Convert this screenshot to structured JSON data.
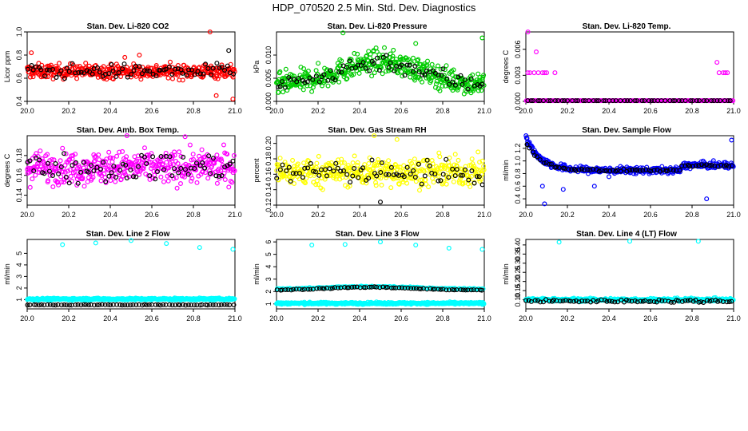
{
  "figure": {
    "title": "HDP_070520  2.5 Min. Std. Dev. Diagnostics"
  },
  "chart_data": [
    {
      "type": "scatter",
      "title": "Stan. Dev. Li-820 CO2",
      "ylabel": "Licor ppm",
      "xlim": [
        20.0,
        21.0
      ],
      "ylim": [
        0.4,
        1.0
      ],
      "xticks": [
        "20.0",
        "20.2",
        "20.4",
        "20.6",
        "20.8",
        "21.0"
      ],
      "yticks": [
        "0.4",
        "0.6",
        "0.8",
        "1.0"
      ],
      "series": [
        {
          "name": "colored",
          "color": "#ff0000",
          "base": 0.66,
          "noise": 0.06,
          "n": 420,
          "outliers": [
            [
              20.02,
              0.82
            ],
            [
              20.47,
              0.78
            ],
            [
              20.54,
              0.8
            ],
            [
              20.88,
              1.0
            ],
            [
              20.91,
              0.45
            ],
            [
              20.99,
              0.42
            ]
          ]
        },
        {
          "name": "black",
          "color": "#000000",
          "base": 0.66,
          "noise": 0.06,
          "n": 75,
          "outliers": [
            [
              20.97,
              0.84
            ]
          ]
        }
      ]
    },
    {
      "type": "scatter",
      "title": "Stan. Dev. Li-820 Pressure",
      "ylabel": "kPa",
      "xlim": [
        20.0,
        21.0
      ],
      "ylim": [
        0.0,
        0.015
      ],
      "xticks": [
        "20.0",
        "20.2",
        "20.4",
        "20.6",
        "20.8",
        "21.0"
      ],
      "yticks": [
        "0.000",
        "0.005",
        "0.010"
      ],
      "series": [
        {
          "name": "colored",
          "color": "#00cc00",
          "curve": "hump",
          "base": 0.0035,
          "peak": 0.0085,
          "noise": 0.0025,
          "n": 420,
          "outliers": [
            [
              20.32,
              0.0148
            ],
            [
              20.67,
              0.0125
            ],
            [
              20.99,
              0.0137
            ]
          ]
        },
        {
          "name": "black",
          "color": "#000000",
          "curve": "hump",
          "base": 0.0035,
          "peak": 0.0085,
          "noise": 0.002,
          "n": 75,
          "outliers": []
        }
      ]
    },
    {
      "type": "scatter",
      "title": "Stan. Dev. Li-820 Temp.",
      "ylabel": "degrees C",
      "xlim": [
        20.0,
        21.0
      ],
      "ylim": [
        0.0,
        0.008
      ],
      "xticks": [
        "20.0",
        "20.2",
        "20.4",
        "20.6",
        "20.8",
        "21.0"
      ],
      "yticks": [
        "0.000",
        "0.003",
        "0.006"
      ],
      "series": [
        {
          "name": "colored",
          "color": "#ff00ff",
          "base": 0.0,
          "noise": 0.0,
          "n": 200,
          "outliers": [
            [
              20.01,
              0.008
            ],
            [
              20.01,
              0.0033
            ],
            [
              20.02,
              0.0033
            ],
            [
              20.04,
              0.0033
            ],
            [
              20.05,
              0.0057
            ],
            [
              20.06,
              0.0033
            ],
            [
              20.08,
              0.0033
            ],
            [
              20.09,
              0.0033
            ],
            [
              20.1,
              0.0033
            ],
            [
              20.14,
              0.0033
            ],
            [
              20.92,
              0.0045
            ],
            [
              20.93,
              0.0033
            ],
            [
              20.95,
              0.0033
            ],
            [
              20.96,
              0.0033
            ],
            [
              20.97,
              0.0033
            ]
          ]
        },
        {
          "name": "black",
          "color": "#000000",
          "base": 0.0,
          "noise": 0.0,
          "n": 60,
          "outliers": []
        }
      ]
    },
    {
      "type": "scatter",
      "title": "Stan. Dev. Amb. Box Temp.",
      "ylabel": "degrees C",
      "xlim": [
        20.0,
        21.0
      ],
      "ylim": [
        0.13,
        0.2
      ],
      "xticks": [
        "20.0",
        "20.2",
        "20.4",
        "20.6",
        "20.8",
        "21.0"
      ],
      "yticks": [
        "0.14",
        "0.16",
        "0.18"
      ],
      "series": [
        {
          "name": "colored",
          "color": "#ff00ff",
          "base": 0.168,
          "noise": 0.016,
          "n": 420,
          "outliers": [
            [
              20.48,
              0.2
            ],
            [
              20.76,
              0.199
            ]
          ]
        },
        {
          "name": "black",
          "color": "#000000",
          "base": 0.168,
          "noise": 0.014,
          "n": 75,
          "outliers": []
        }
      ]
    },
    {
      "type": "scatter",
      "title": "Stan. Dev. Gas Stream RH",
      "ylabel": "percent",
      "xlim": [
        20.0,
        21.0
      ],
      "ylim": [
        0.12,
        0.21
      ],
      "xticks": [
        "20.0",
        "20.2",
        "20.4",
        "20.6",
        "20.8",
        "21.0"
      ],
      "yticks": [
        "0.12",
        "0.14",
        "0.16",
        "0.18",
        "0.20"
      ],
      "series": [
        {
          "name": "colored",
          "color": "#ffff00",
          "base": 0.163,
          "noise": 0.018,
          "n": 420,
          "outliers": [
            [
              20.47,
              0.21
            ],
            [
              20.58,
              0.205
            ]
          ]
        },
        {
          "name": "black",
          "color": "#000000",
          "base": 0.163,
          "noise": 0.015,
          "n": 75,
          "outliers": [
            [
              20.5,
              0.124
            ]
          ]
        }
      ]
    },
    {
      "type": "scatter",
      "title": "Stan. Dev. Sample Flow",
      "ylabel": "ml/min",
      "xlim": [
        20.0,
        21.0
      ],
      "ylim": [
        0.3,
        1.4
      ],
      "xticks": [
        "20.0",
        "20.2",
        "20.4",
        "20.6",
        "20.8",
        "21.0"
      ],
      "yticks": [
        "0.4",
        "0.6",
        "0.8",
        "1.0",
        "1.2"
      ],
      "series": [
        {
          "name": "colored",
          "color": "#0000ff",
          "curve": "decay",
          "base": 0.85,
          "peak": 1.38,
          "noise": 0.05,
          "n": 420,
          "outliers": [
            [
              20.09,
              0.32
            ],
            [
              20.08,
              0.6
            ],
            [
              20.18,
              0.55
            ],
            [
              20.33,
              0.6
            ],
            [
              20.4,
              0.75
            ],
            [
              20.87,
              0.4
            ],
            [
              20.99,
              1.33
            ]
          ]
        },
        {
          "name": "black",
          "color": "#000000",
          "curve": "decay",
          "base": 0.85,
          "peak": 1.3,
          "noise": 0.02,
          "n": 75,
          "outliers": []
        }
      ]
    },
    {
      "type": "scatter",
      "title": "Stan. Dev. Line 2 Flow",
      "ylabel": "ml/min",
      "xlim": [
        20.0,
        21.0
      ],
      "ylim": [
        0.2,
        6.2
      ],
      "xticks": [
        "20.0",
        "20.2",
        "20.4",
        "20.6",
        "20.8",
        "21.0"
      ],
      "yticks": [
        "1",
        "2",
        "3",
        "4",
        "5"
      ],
      "series": [
        {
          "name": "colored",
          "color": "#00ffff",
          "base": 1.05,
          "noise": 0.08,
          "n": 420,
          "outliers": [
            [
              20.17,
              5.75
            ],
            [
              20.33,
              5.9
            ],
            [
              20.5,
              6.1
            ],
            [
              20.67,
              5.85
            ],
            [
              20.83,
              5.5
            ],
            [
              20.99,
              5.35
            ]
          ]
        },
        {
          "name": "black",
          "color": "#000000",
          "base": 0.55,
          "noise": 0.03,
          "n": 75,
          "outliers": []
        }
      ]
    },
    {
      "type": "scatter",
      "title": "Stan. Dev. Line 3 Flow",
      "ylabel": "ml/min",
      "xlim": [
        20.0,
        21.0
      ],
      "ylim": [
        0.6,
        6.2
      ],
      "xticks": [
        "20.0",
        "20.2",
        "20.4",
        "20.6",
        "20.8",
        "21.0"
      ],
      "yticks": [
        "1",
        "2",
        "3",
        "4",
        "5",
        "6"
      ],
      "series": [
        {
          "name": "colored",
          "color": "#00ffff",
          "base": 1.05,
          "noise": 0.08,
          "n": 420,
          "outliers": [
            [
              20.17,
              5.75
            ],
            [
              20.33,
              5.8
            ],
            [
              20.5,
              6.0
            ],
            [
              20.67,
              5.75
            ],
            [
              20.83,
              5.5
            ],
            [
              20.99,
              5.4
            ]
          ]
        },
        {
          "name": "colored2",
          "color": "#00ffff",
          "curve": "bump",
          "base": 2.2,
          "peak": 2.4,
          "noise": 0.05,
          "n": 140,
          "outliers": []
        },
        {
          "name": "black",
          "color": "#000000",
          "curve": "bump",
          "base": 2.1,
          "peak": 2.35,
          "noise": 0.04,
          "n": 75,
          "outliers": []
        }
      ]
    },
    {
      "type": "scatter",
      "title": "Stan. Dev. Line 4 (LT) Flow",
      "ylabel": "ml/min",
      "xlim": [
        20.0,
        21.0
      ],
      "ylim": [
        0.05,
        0.43
      ],
      "xticks": [
        "20.0",
        "20.2",
        "20.4",
        "20.6",
        "20.8",
        "21.0"
      ],
      "yticks": [
        "0.10",
        "0.15",
        "0.20",
        "0.25",
        "0.30",
        "0.35",
        "0.40"
      ],
      "series": [
        {
          "name": "colored",
          "color": "#00ffff",
          "base": 0.1,
          "noise": 0.008,
          "n": 420,
          "outliers": [
            [
              20.16,
              0.415
            ],
            [
              20.5,
              0.42
            ],
            [
              20.83,
              0.42
            ]
          ]
        },
        {
          "name": "black",
          "color": "#000000",
          "base": 0.093,
          "noise": 0.008,
          "n": 75,
          "outliers": []
        }
      ]
    }
  ]
}
